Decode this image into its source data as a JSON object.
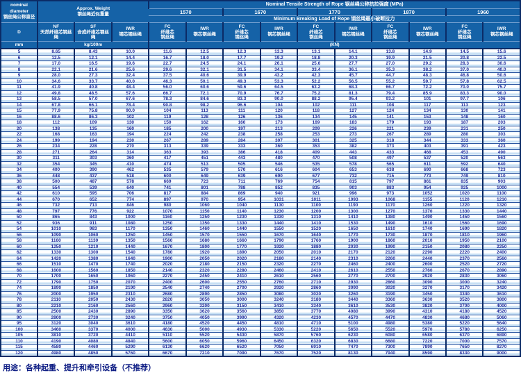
{
  "table": {
    "diameter": {
      "en1": "nominal",
      "en2": "diameter",
      "zh": "钢丝绳公称直径",
      "symbol": "D",
      "unit": "mm"
    },
    "weight": {
      "title_en": "Approx. Weight",
      "title_zh": "钢丝绳近似重量",
      "unit": "kg/100m",
      "columns": [
        {
          "code": "NF",
          "zh": "天然纤维芯钢丝\n绳"
        },
        {
          "code": "SF",
          "zh": "合成纤维芯钢丝\n绳"
        },
        {
          "code": "IWR",
          "zh": "钢芯钢丝绳"
        }
      ]
    },
    "strength": {
      "title_en": "Nominal Tensile Strength of Rope",
      "title_zh": "钢丝绳公称抗拉强度",
      "title_unit": "(MPa)",
      "grades": [
        "1570",
        "1670",
        "1770",
        "1870",
        "1960"
      ],
      "breaking_en": "Minimum Breaking Load of Rope",
      "breaking_zh": "钢丝绳最小破断拉力",
      "unit": "(KN)",
      "load_columns": [
        {
          "code": "FC",
          "zh": "纤维芯\n钢丝绳"
        },
        {
          "code": "IWR",
          "zh": "钢芯钢丝绳"
        },
        {
          "code": "FC",
          "zh": "纤维芯\n钢丝绳"
        },
        {
          "code": "IWR",
          "zh": "钢芯钢丝绳"
        },
        {
          "code": "FC",
          "zh": "纤维芯\n钢丝绳"
        },
        {
          "code": "IWR",
          "zh": "钢芯钢丝绳"
        },
        {
          "code": "FC",
          "zh": "纤维芯\n钢丝绳"
        },
        {
          "code": "IWR",
          "zh": "钢芯钢丝绳"
        },
        {
          "code": "FC",
          "zh": "纤维芯\n钢丝绳"
        },
        {
          "code": "IWR",
          "zh": "钢芯钢丝绳"
        }
      ]
    },
    "rows": [
      [
        "5",
        "8.65",
        "8.43",
        "10.0",
        "11.6",
        "12.5",
        "12.3",
        "13.3",
        "13.1",
        "14.1",
        "13.8",
        "14.9",
        "14.5",
        "15.6"
      ],
      [
        "6",
        "12.5",
        "12.1",
        "14.4",
        "16.7",
        "18.0",
        "17.7",
        "19.2",
        "18.8",
        "20.3",
        "19.9",
        "21.5",
        "20.8",
        "22.5"
      ],
      [
        "7",
        "17.0",
        "16.5",
        "19.6",
        "22.7",
        "24.5",
        "24.1",
        "26.1",
        "25.6",
        "27.7",
        "27.0",
        "29.2",
        "28.3",
        "30.6"
      ],
      [
        "8",
        "22.1",
        "21.6",
        "25.6",
        "29.6",
        "32.1",
        "31.5",
        "34.1",
        "33.4",
        "36.1",
        "35.3",
        "38.2",
        "37.0",
        "40.0"
      ],
      [
        "9",
        "28.0",
        "27.3",
        "32.4",
        "37.5",
        "40.6",
        "39.9",
        "43.2",
        "42.3",
        "45.7",
        "44.7",
        "48.3",
        "46.8",
        "50.6"
      ],
      [
        "10",
        "34.6",
        "33.7",
        "40.0",
        "46.3",
        "50.1",
        "49.3",
        "53.3",
        "52.2",
        "56.5",
        "55.2",
        "59.7",
        "57.8",
        "62.5"
      ],
      [
        "11",
        "41.9",
        "40.8",
        "48.4",
        "56.0",
        "60.6",
        "59.6",
        "64.5",
        "63.2",
        "68.3",
        "66.7",
        "72.2",
        "70.0",
        "75.7"
      ],
      [
        "12",
        "49.8",
        "48.5",
        "57.6",
        "66.7",
        "72.1",
        "70.9",
        "76.7",
        "75.2",
        "81.3",
        "79.4",
        "85.9",
        "83.3",
        "90.0"
      ],
      [
        "13",
        "58.5",
        "57.0",
        "67.6",
        "78.3",
        "84.6",
        "83.3",
        "90.0",
        "88.2",
        "95.4",
        "93.2",
        "101",
        "97.7",
        "106"
      ],
      [
        "14",
        "67.8",
        "66.1",
        "78.4",
        "90.8",
        "98.2",
        "96.6",
        "104",
        "102",
        "111",
        "108",
        "117",
        "113",
        "123"
      ],
      [
        "15",
        "77.9",
        "75.8",
        "90.0",
        "104",
        "113",
        "111",
        "120",
        "118",
        "127",
        "124",
        "134",
        "130",
        "141"
      ],
      [
        "16",
        "88.6",
        "86.3",
        "102",
        "119",
        "128",
        "126",
        "136",
        "134",
        "145",
        "141",
        "153",
        "148",
        "160"
      ],
      [
        "18",
        "112",
        "109",
        "130",
        "150",
        "162",
        "160",
        "173",
        "169",
        "183",
        "179",
        "193",
        "187",
        "203"
      ],
      [
        "20",
        "138",
        "135",
        "160",
        "185",
        "200",
        "197",
        "213",
        "209",
        "226",
        "221",
        "239",
        "231",
        "250"
      ],
      [
        "22",
        "168",
        "163",
        "194",
        "224",
        "242",
        "238",
        "258",
        "253",
        "273",
        "267",
        "289",
        "280",
        "303"
      ],
      [
        "24",
        "199",
        "194",
        "230",
        "267",
        "289",
        "284",
        "307",
        "301",
        "325",
        "318",
        "344",
        "333",
        "360"
      ],
      [
        "26",
        "234",
        "228",
        "270",
        "313",
        "339",
        "333",
        "360",
        "353",
        "382",
        "373",
        "403",
        "391",
        "423"
      ],
      [
        "28",
        "271",
        "264",
        "314",
        "363",
        "393",
        "386",
        "418",
        "409",
        "443",
        "433",
        "468",
        "453",
        "490"
      ],
      [
        "30",
        "311",
        "303",
        "360",
        "417",
        "451",
        "443",
        "480",
        "470",
        "508",
        "497",
        "537",
        "520",
        "563"
      ],
      [
        "32",
        "354",
        "345",
        "410",
        "474",
        "513",
        "505",
        "546",
        "535",
        "578",
        "565",
        "611",
        "592",
        "640"
      ],
      [
        "34",
        "400",
        "390",
        "462",
        "535",
        "579",
        "570",
        "616",
        "604",
        "653",
        "638",
        "690",
        "668",
        "723"
      ],
      [
        "36",
        "448",
        "437",
        "518",
        "600",
        "649",
        "639",
        "690",
        "677",
        "732",
        "715",
        "773",
        "749",
        "810"
      ],
      [
        "38",
        "500",
        "487",
        "578",
        "669",
        "723",
        "711",
        "769",
        "754",
        "815",
        "797",
        "861",
        "835",
        "903"
      ],
      [
        "40",
        "554",
        "539",
        "640",
        "741",
        "801",
        "788",
        "852",
        "835",
        "903",
        "883",
        "954",
        "925",
        "1000"
      ],
      [
        "42",
        "610",
        "595",
        "706",
        "817",
        "884",
        "869",
        "940",
        "921",
        "996",
        "973",
        "1052",
        "1020",
        "1100"
      ],
      [
        "44",
        "670",
        "652",
        "774",
        "897",
        "970",
        "954",
        "1031",
        "1011",
        "1093",
        "1068",
        "1155",
        "1120",
        "1210"
      ],
      [
        "46",
        "732",
        "713",
        "846",
        "980",
        "1060",
        "1040",
        "1130",
        "1100",
        "1190",
        "1170",
        "1260",
        "1220",
        "1320"
      ],
      [
        "48",
        "797",
        "776",
        "922",
        "1070",
        "1150",
        "1140",
        "1230",
        "1200",
        "1300",
        "1270",
        "1370",
        "1330",
        "1440"
      ],
      [
        "50",
        "865",
        "843",
        "1000",
        "1160",
        "1250",
        "1230",
        "1330",
        "1310",
        "1410",
        "1380",
        "1490",
        "1450",
        "1560"
      ],
      [
        "52",
        "936",
        "911",
        "1080",
        "1250",
        "1350",
        "1330",
        "1440",
        "1410",
        "1530",
        "1490",
        "1610",
        "1560",
        "1690"
      ],
      [
        "54",
        "1010",
        "983",
        "1170",
        "1350",
        "1460",
        "1440",
        "1550",
        "1520",
        "1650",
        "1610",
        "1740",
        "1690",
        "1820"
      ],
      [
        "56",
        "1090",
        "1060",
        "1250",
        "1450",
        "1570",
        "1550",
        "1670",
        "1640",
        "1770",
        "1730",
        "1870",
        "1810",
        "1960"
      ],
      [
        "58",
        "1160",
        "1130",
        "1350",
        "1560",
        "1680",
        "1660",
        "1790",
        "1760",
        "1900",
        "1860",
        "2010",
        "1950",
        "2100"
      ],
      [
        "60",
        "1250",
        "1210",
        "1440",
        "1670",
        "1800",
        "1770",
        "1920",
        "1880",
        "2030",
        "1990",
        "2150",
        "2080",
        "2250"
      ],
      [
        "62",
        "1330",
        "1300",
        "1540",
        "1780",
        "1920",
        "1890",
        "2050",
        "2010",
        "2170",
        "2120",
        "2290",
        "2220",
        "2400"
      ],
      [
        "64",
        "1420",
        "1380",
        "1640",
        "1900",
        "2050",
        "2020",
        "2180",
        "2140",
        "2310",
        "2260",
        "2440",
        "2370",
        "2560"
      ],
      [
        "66",
        "1510",
        "1470",
        "1740",
        "2020",
        "2180",
        "2150",
        "2320",
        "2270",
        "2460",
        "2400",
        "2600",
        "2520",
        "2720"
      ],
      [
        "68",
        "1600",
        "1560",
        "1850",
        "2140",
        "2320",
        "2280",
        "2460",
        "2410",
        "2610",
        "2550",
        "2760",
        "2670",
        "2890"
      ],
      [
        "70",
        "1700",
        "1650",
        "1960",
        "2270",
        "2450",
        "2410",
        "2610",
        "2560",
        "2770",
        "2700",
        "2920",
        "2830",
        "3060"
      ],
      [
        "72",
        "1790",
        "1750",
        "2070",
        "2400",
        "2600",
        "2550",
        "2760",
        "2710",
        "2930",
        "2860",
        "3090",
        "3000",
        "3240"
      ],
      [
        "74",
        "1890",
        "1850",
        "2190",
        "2540",
        "2740",
        "2700",
        "2920",
        "2860",
        "3090",
        "3020",
        "3270",
        "3170",
        "3420"
      ],
      [
        "76",
        "2000",
        "1950",
        "2310",
        "2680",
        "2890",
        "2850",
        "3080",
        "3020",
        "3260",
        "3190",
        "3450",
        "3340",
        "3610"
      ],
      [
        "78",
        "2110",
        "2050",
        "2430",
        "2820",
        "3050",
        "3000",
        "3240",
        "3180",
        "3440",
        "3360",
        "3630",
        "3520",
        "3800"
      ],
      [
        "80",
        "2210",
        "2160",
        "2560",
        "2960",
        "3200",
        "3150",
        "3410",
        "3340",
        "3610",
        "3530",
        "3820",
        "3700",
        "4000"
      ],
      [
        "85",
        "2500",
        "2430",
        "2890",
        "3350",
        "3620",
        "3560",
        "3850",
        "3770",
        "4080",
        "3990",
        "4310",
        "4180",
        "4520"
      ],
      [
        "90",
        "2800",
        "2730",
        "3240",
        "3750",
        "4050",
        "3990",
        "4320",
        "4230",
        "4570",
        "4470",
        "4830",
        "4680",
        "5060"
      ],
      [
        "95",
        "3120",
        "3040",
        "3610",
        "4180",
        "4520",
        "4450",
        "4810",
        "4710",
        "5100",
        "4980",
        "5380",
        "5220",
        "5640"
      ],
      [
        "100",
        "3460",
        "3370",
        "4000",
        "4630",
        "5000",
        "4930",
        "5330",
        "5220",
        "5650",
        "5520",
        "5970",
        "5780",
        "6250"
      ],
      [
        "105",
        "3810",
        "3720",
        "4410",
        "5110",
        "5520",
        "5430",
        "5870",
        "5760",
        "6230",
        "6080",
        "6580",
        "6370",
        "6890"
      ],
      [
        "110",
        "4190",
        "4080",
        "4840",
        "5600",
        "6050",
        "5960",
        "6450",
        "6320",
        "6830",
        "6680",
        "7220",
        "7000",
        "7570"
      ],
      [
        "115",
        "4580",
        "4460",
        "5290",
        "6130",
        "6620",
        "6520",
        "7050",
        "6910",
        "7470",
        "7300",
        "7890",
        "7650",
        "8270"
      ],
      [
        "120",
        "4980",
        "4850",
        "5760",
        "6670",
        "7210",
        "7090",
        "7670",
        "7520",
        "8130",
        "7940",
        "8590",
        "8330",
        "9000"
      ]
    ]
  },
  "footer": {
    "note": "用途：各种起重、提升和牵引设备（不推荐）"
  }
}
